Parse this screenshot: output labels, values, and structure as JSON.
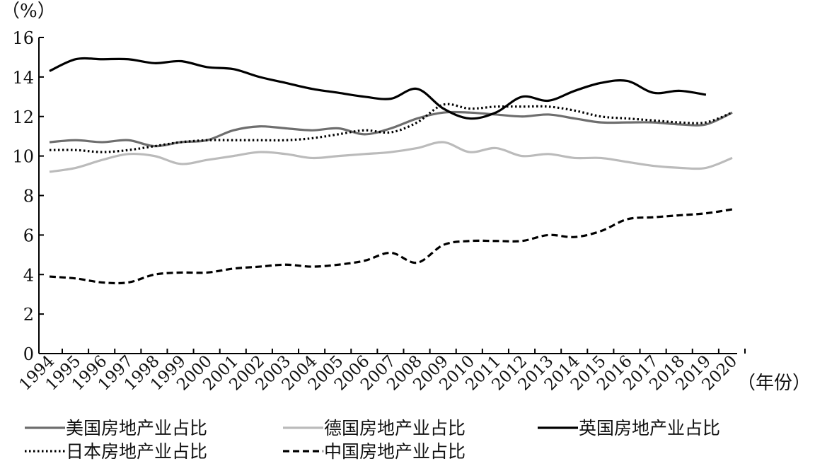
{
  "chart_data": {
    "type": "line",
    "title": "",
    "ylabel": "（%）",
    "xlabel": "（年份）",
    "ylim": [
      0,
      16
    ],
    "yticks": [
      "0",
      "2",
      "4",
      "6",
      "8",
      "10",
      "12",
      "14",
      "16"
    ],
    "categories": [
      "1994",
      "1995",
      "1996",
      "1997",
      "1998",
      "1999",
      "2000",
      "2001",
      "2002",
      "2003",
      "2004",
      "2005",
      "2006",
      "2007",
      "2008",
      "2009",
      "2010",
      "2011",
      "2012",
      "2013",
      "2014",
      "2015",
      "2016",
      "2017",
      "2018",
      "2019",
      "2020"
    ],
    "legend_placement": "bottom",
    "series": [
      {
        "name": "美国房地产业占比",
        "color": "#6e6e6e",
        "style": "solid",
        "values": [
          10.7,
          10.8,
          10.7,
          10.8,
          10.5,
          10.7,
          10.8,
          11.3,
          11.5,
          11.4,
          11.3,
          11.4,
          11.1,
          11.4,
          11.9,
          12.2,
          12.2,
          12.1,
          12.0,
          12.1,
          11.9,
          11.7,
          11.7,
          11.7,
          11.6,
          11.6,
          12.2
        ]
      },
      {
        "name": "德国房地产业占比",
        "color": "#bbbbbb",
        "style": "solid",
        "values": [
          9.2,
          9.4,
          9.8,
          10.1,
          10.0,
          9.6,
          9.8,
          10.0,
          10.2,
          10.1,
          9.9,
          10.0,
          10.1,
          10.2,
          10.4,
          10.7,
          10.2,
          10.4,
          10.0,
          10.1,
          9.9,
          9.9,
          9.7,
          9.5,
          9.4,
          9.4,
          9.9
        ]
      },
      {
        "name": "英国房地产业占比",
        "color": "#000000",
        "style": "solid",
        "values": [
          14.3,
          14.9,
          14.9,
          14.9,
          14.7,
          14.8,
          14.5,
          14.4,
          14.0,
          13.7,
          13.4,
          13.2,
          13.0,
          12.9,
          13.4,
          12.4,
          11.9,
          12.2,
          13.0,
          12.8,
          13.3,
          13.7,
          13.8,
          13.2,
          13.3,
          13.1,
          null
        ]
      },
      {
        "name": "日本房地产业占比",
        "color": "#000000",
        "style": "dotted",
        "values": [
          10.3,
          10.3,
          10.2,
          10.3,
          10.5,
          10.7,
          10.8,
          10.8,
          10.8,
          10.8,
          10.9,
          11.1,
          11.3,
          11.2,
          11.7,
          12.6,
          12.4,
          12.5,
          12.5,
          12.5,
          12.3,
          12.0,
          11.9,
          11.8,
          11.7,
          11.7,
          12.2
        ]
      },
      {
        "name": "中国房地产业占比",
        "color": "#000000",
        "style": "dashed",
        "values": [
          3.9,
          3.8,
          3.6,
          3.6,
          4.0,
          4.1,
          4.1,
          4.3,
          4.4,
          4.5,
          4.4,
          4.5,
          4.7,
          5.1,
          4.6,
          5.5,
          5.7,
          5.7,
          5.7,
          6.0,
          5.9,
          6.2,
          6.8,
          6.9,
          7.0,
          7.1,
          7.3
        ]
      }
    ]
  }
}
